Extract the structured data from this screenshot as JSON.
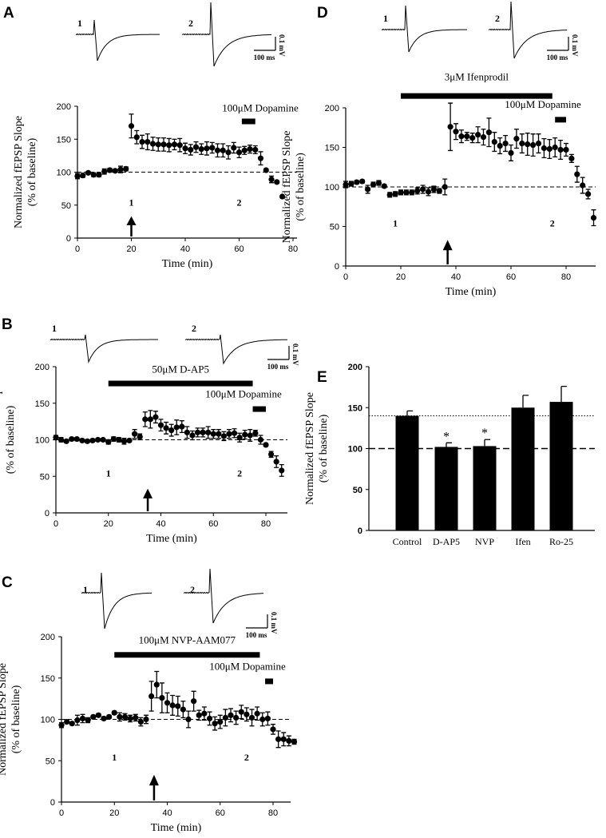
{
  "chart_data": [
    {
      "panel": "A",
      "type": "scatter",
      "xlabel": "Time (min)",
      "ylabel": "Normalized fEPSP Slope",
      "ylabel2": "(% of baseline)",
      "xticks": [
        0,
        20,
        40,
        60,
        80
      ],
      "yticks": [
        0,
        50,
        100,
        150,
        200
      ],
      "xlim": [
        0,
        80
      ],
      "ylim": [
        0,
        200
      ],
      "baseline": 100,
      "series": {
        "x_start": 0,
        "x_step": 2,
        "y": [
          94,
          95,
          99,
          96,
          96,
          101,
          103,
          102,
          104,
          105,
          170,
          153,
          146,
          146,
          143,
          142,
          142,
          141,
          142,
          141,
          136,
          134,
          138,
          135,
          136,
          137,
          133,
          133,
          130,
          137,
          130,
          133,
          135,
          134,
          121,
          103,
          89,
          85,
          63
        ],
        "err": [
          4,
          3,
          2,
          3,
          3,
          4,
          3,
          2,
          5,
          3,
          18,
          10,
          10,
          12,
          10,
          10,
          10,
          10,
          8,
          10,
          8,
          8,
          8,
          8,
          10,
          8,
          10,
          10,
          10,
          8,
          8,
          6,
          6,
          6,
          10,
          2,
          5,
          2,
          1
        ]
      },
      "drug_bars": [
        {
          "label": "100μM Dopamine",
          "start": 61,
          "end": 66
        }
      ],
      "arrow_time": 20,
      "trace_labels": [
        "1",
        "2"
      ],
      "scale": {
        "time": "100 ms",
        "volt": "0.1 mV"
      }
    },
    {
      "panel": "B",
      "type": "scatter",
      "xlabel": "Time (min)",
      "ylabel": "Normalized fEPSP Slope",
      "ylabel2": "(% of baseline)",
      "xticks": [
        0,
        20,
        40,
        60,
        80
      ],
      "yticks": [
        0,
        50,
        100,
        150,
        200
      ],
      "xlim": [
        0,
        90
      ],
      "ylim": [
        0,
        200
      ],
      "baseline": 100,
      "series": {
        "x_start": 0,
        "x_step": 2,
        "y": [
          103,
          100,
          98,
          101,
          101,
          99,
          98,
          99,
          100,
          100,
          97,
          101,
          100,
          98,
          99,
          108,
          104,
          128,
          128,
          131,
          120,
          116,
          113,
          117,
          118,
          110,
          106,
          110,
          110,
          110,
          108,
          108,
          105,
          108,
          109,
          103,
          107,
          106,
          109,
          100,
          93,
          80,
          70,
          58
        ],
        "err": [
          3,
          3,
          2,
          2,
          2,
          2,
          2,
          2,
          2,
          2,
          3,
          3,
          3,
          4,
          2,
          6,
          4,
          10,
          12,
          8,
          8,
          8,
          8,
          10,
          8,
          8,
          6,
          6,
          6,
          8,
          6,
          6,
          6,
          6,
          6,
          6,
          6,
          8,
          4,
          6,
          2,
          4,
          8,
          8
        ]
      },
      "drug_bars": [
        {
          "label": "50μM D-AP5",
          "start": 20,
          "end": 75
        },
        {
          "label": "100μM Dopamine",
          "start": 75,
          "end": 80
        }
      ],
      "arrow_time": 35,
      "trace_labels": [
        "1",
        "2"
      ],
      "scale": {
        "time": "100 ms",
        "volt": "0.1 mV"
      }
    },
    {
      "panel": "C",
      "type": "scatter",
      "xlabel": "Time (min)",
      "ylabel": "Normalized fEPSP Slope",
      "ylabel2": "(% of baseline)",
      "xticks": [
        0,
        20,
        40,
        60,
        80
      ],
      "yticks": [
        0,
        50,
        100,
        150,
        200
      ],
      "xlim": [
        0,
        90
      ],
      "ylim": [
        0,
        200
      ],
      "baseline": 100,
      "series": {
        "x_start": 0,
        "x_step": 2,
        "y": [
          93,
          97,
          95,
          99,
          101,
          99,
          103,
          105,
          101,
          103,
          108,
          103,
          103,
          101,
          102,
          97,
          100,
          128,
          142,
          126,
          120,
          117,
          116,
          112,
          100,
          122,
          105,
          107,
          101,
          95,
          97,
          102,
          105,
          102,
          109,
          106,
          102,
          107,
          100,
          101,
          88,
          76,
          76,
          74,
          73
        ],
        "err": [
          3,
          2,
          2,
          6,
          5,
          3,
          2,
          2,
          2,
          2,
          2,
          5,
          4,
          4,
          4,
          5,
          5,
          18,
          16,
          18,
          12,
          12,
          12,
          10,
          10,
          12,
          6,
          8,
          8,
          8,
          8,
          10,
          8,
          8,
          8,
          8,
          10,
          8,
          8,
          8,
          6,
          10,
          8,
          6,
          3
        ]
      },
      "drug_bars": [
        {
          "label": "100μM NVP-AAM077",
          "start": 20,
          "end": 75
        },
        {
          "label": "100μM Dopamine",
          "start": 77,
          "end": 80
        }
      ],
      "arrow_time": 35,
      "trace_labels": [
        "1",
        "2"
      ],
      "scale": {
        "time": "100 ms",
        "volt": "0.1 mV"
      }
    },
    {
      "panel": "D",
      "type": "scatter",
      "xlabel": "Time (min)",
      "ylabel": "Normalized fEPSP Slope",
      "ylabel2": "(% of baseline)",
      "xticks": [
        0,
        20,
        40,
        60,
        80
      ],
      "yticks": [
        0,
        50,
        100,
        150,
        200
      ],
      "xlim": [
        0,
        90
      ],
      "ylim": [
        0,
        200
      ],
      "baseline": 100,
      "series": {
        "x_start": 0,
        "x_step": 2,
        "y": [
          103,
          104,
          106,
          107,
          97,
          103,
          105,
          101,
          90,
          91,
          93,
          93,
          93,
          95,
          97,
          94,
          97,
          95,
          100,
          176,
          170,
          164,
          164,
          162,
          166,
          163,
          169,
          157,
          152,
          155,
          143,
          161,
          155,
          154,
          153,
          155,
          149,
          148,
          150,
          147,
          147,
          136,
          116,
          102,
          91,
          61
        ],
        "err": [
          4,
          3,
          2,
          2,
          5,
          3,
          3,
          2,
          3,
          3,
          3,
          3,
          3,
          4,
          5,
          5,
          4,
          3,
          10,
          30,
          10,
          8,
          5,
          6,
          10,
          10,
          18,
          12,
          10,
          10,
          10,
          12,
          12,
          14,
          14,
          12,
          12,
          12,
          12,
          12,
          8,
          5,
          10,
          10,
          6,
          10
        ]
      },
      "drug_bars": [
        {
          "label": "3μM Ifenprodil",
          "start": 20,
          "end": 75
        },
        {
          "label": "100μM Dopamine",
          "start": 76,
          "end": 80
        }
      ],
      "arrow_time": 37,
      "trace_labels": [
        "1",
        "2"
      ],
      "scale": {
        "time": "100 ms",
        "volt": "0.1 mV"
      }
    },
    {
      "panel": "E",
      "type": "bar",
      "ylabel": "Normalized fEPSP Slope",
      "ylabel2": "(% of baseline)",
      "categories": [
        "Control",
        "D-AP5",
        "NVP",
        "Ifen",
        "Ro-25"
      ],
      "values": [
        140,
        102,
        103,
        150,
        157
      ],
      "errors": [
        6,
        5,
        8,
        15,
        19
      ],
      "significance": [
        "",
        "*",
        "*",
        "",
        ""
      ],
      "reference_lines": {
        "control_level": 140,
        "baseline": 100
      },
      "yticks": [
        0,
        50,
        100,
        150,
        200
      ],
      "ylim": [
        0,
        200
      ]
    }
  ]
}
